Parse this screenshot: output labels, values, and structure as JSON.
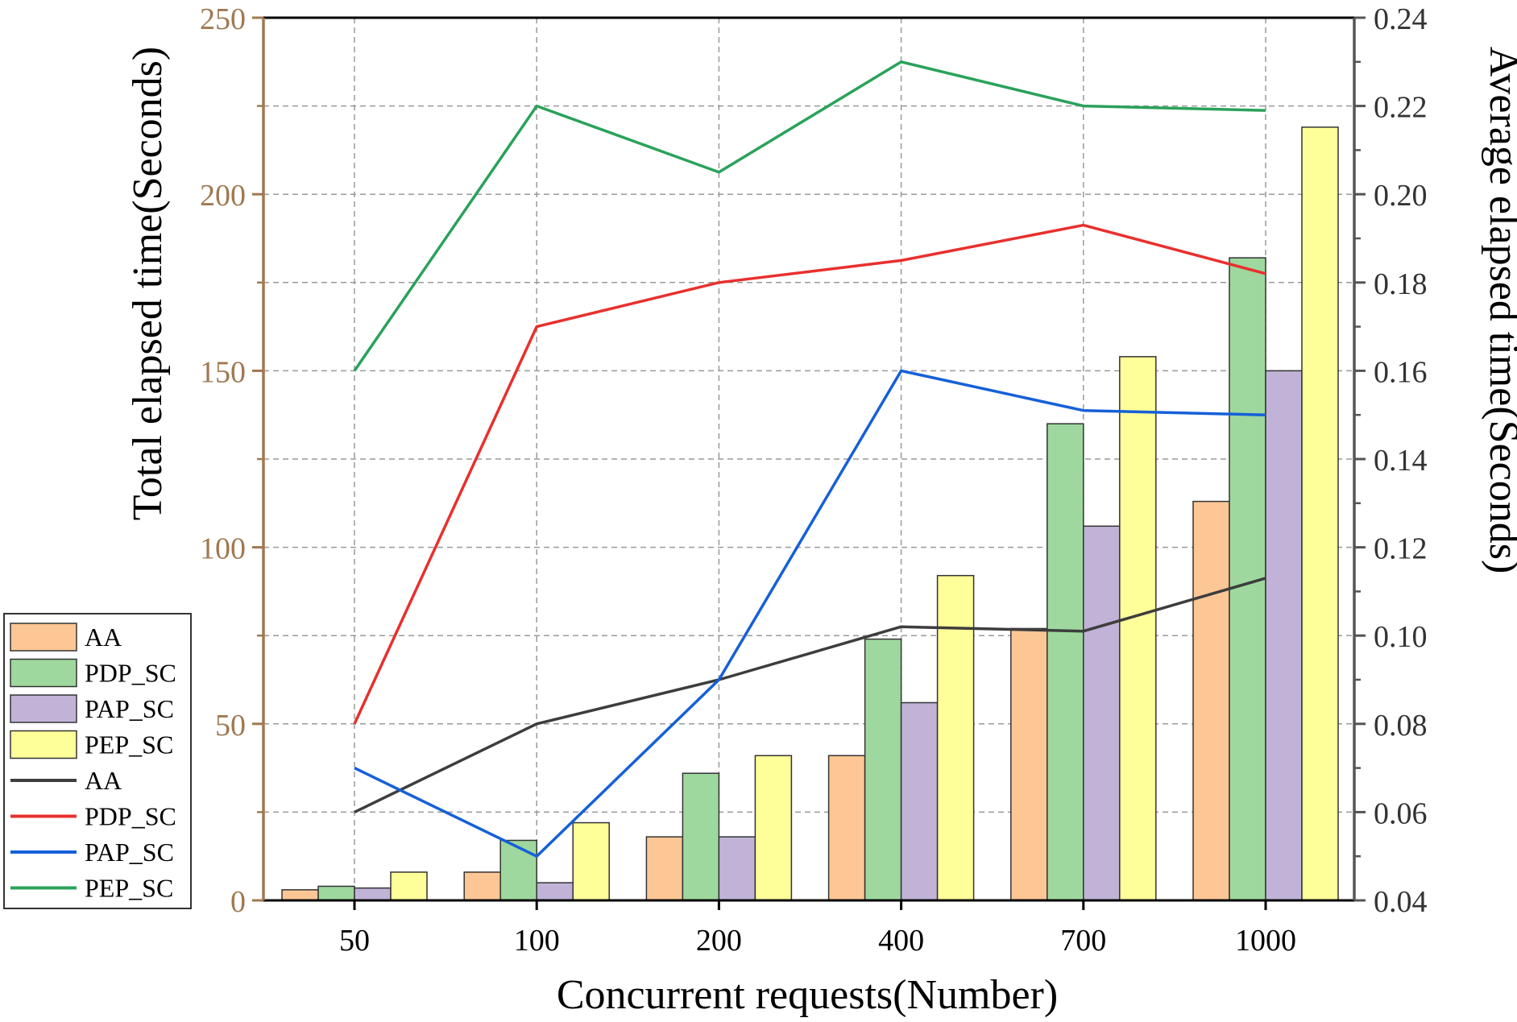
{
  "chart_data": {
    "type": "bar",
    "categories": [
      "50",
      "100",
      "200",
      "400",
      "700",
      "1000"
    ],
    "xlabel": "Concurrent requests(Number)",
    "ylabel": "Total elapsed time(Seconds)",
    "y2label": "Average elapsed time(Seconds)",
    "ylim": [
      0,
      250
    ],
    "yticks": [
      0,
      50,
      100,
      150,
      200,
      250
    ],
    "y2lim": [
      0.04,
      0.24
    ],
    "y2ticks": [
      "0.04",
      "0.06",
      "0.08",
      "0.10",
      "0.12",
      "0.14",
      "0.16",
      "0.18",
      "0.20",
      "0.22",
      "0.24"
    ],
    "grid": true,
    "legend_position": "bottom-left",
    "bar_series": [
      {
        "name": "AA",
        "color": "#FDC795",
        "values": [
          3,
          8,
          18,
          41,
          77,
          113
        ]
      },
      {
        "name": "PDP_SC",
        "color": "#9ED89E",
        "values": [
          4,
          17,
          36,
          74,
          135,
          182
        ]
      },
      {
        "name": "PAP_SC",
        "color": "#C1B3D8",
        "values": [
          3.5,
          5,
          18,
          56,
          106,
          150
        ]
      },
      {
        "name": "PEP_SC",
        "color": "#FFFF99",
        "values": [
          8,
          22,
          41,
          92,
          154,
          219
        ]
      }
    ],
    "line_series": [
      {
        "name": "AA",
        "color": "#3D3D3D",
        "axis": "right",
        "values": [
          0.06,
          0.08,
          0.09,
          0.102,
          0.101,
          0.113
        ]
      },
      {
        "name": "PDP_SC",
        "color": "#E8302E",
        "axis": "right",
        "values": [
          0.08,
          0.17,
          0.18,
          0.185,
          0.193,
          0.182
        ]
      },
      {
        "name": "PAP_SC",
        "color": "#1560D8",
        "axis": "right",
        "values": [
          0.07,
          0.05,
          0.09,
          0.16,
          0.151,
          0.15
        ]
      },
      {
        "name": "PEP_SC",
        "color": "#2AA25A",
        "axis": "right",
        "values": [
          0.16,
          0.22,
          0.205,
          0.23,
          0.22,
          0.219
        ]
      }
    ],
    "axis_colors": {
      "left": "#A07850",
      "right": "#555555"
    }
  }
}
